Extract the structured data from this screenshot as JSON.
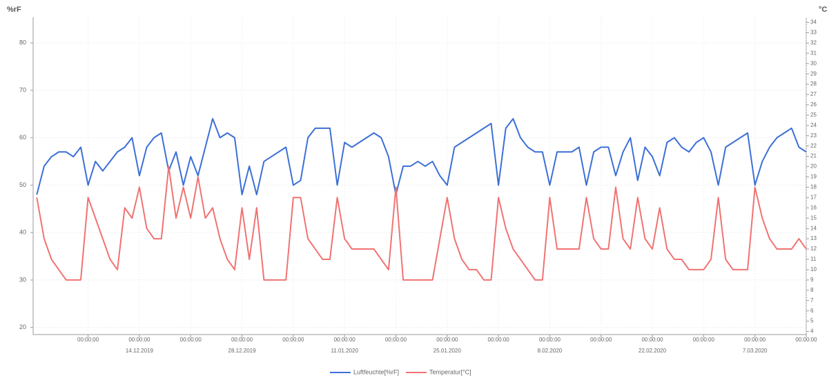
{
  "chart_data": {
    "type": "line",
    "ylabel": "%rF",
    "y2label": "°C",
    "x": [
      -7,
      -6,
      -5,
      -4,
      -3,
      -2,
      -1,
      0,
      1,
      2,
      3,
      4,
      5,
      6,
      7,
      8,
      9,
      10,
      11,
      12,
      13,
      14,
      15,
      16,
      17,
      18,
      19,
      20,
      21,
      22,
      23,
      24,
      25,
      26,
      27,
      28,
      29,
      30,
      31,
      32,
      33,
      34,
      35,
      36,
      37,
      38,
      39,
      40,
      41,
      42,
      43,
      44,
      45,
      46,
      47,
      48,
      49,
      50,
      51,
      52,
      53,
      54,
      55,
      56,
      57,
      58,
      59,
      60,
      61,
      62,
      63,
      64,
      65,
      66,
      67,
      68,
      69,
      70,
      71,
      72,
      73,
      74,
      75,
      76,
      77,
      78,
      79,
      80,
      81,
      82,
      83,
      84,
      85,
      86,
      87,
      88,
      89,
      90,
      91,
      92,
      93,
      94,
      95,
      96,
      97,
      98
    ],
    "series": [
      {
        "name": "Luftfeuchte[%rF]",
        "color": "#3b6fd6",
        "axis": "y",
        "values": [
          48,
          54,
          56,
          57,
          57,
          56,
          58,
          50,
          55,
          53,
          55,
          57,
          58,
          60,
          52,
          58,
          60,
          61,
          53,
          57,
          50,
          56,
          52,
          58,
          64,
          60,
          61,
          60,
          48,
          54,
          48,
          55,
          56,
          57,
          58,
          50,
          51,
          60,
          62,
          62,
          62,
          50,
          59,
          58,
          59,
          60,
          61,
          60,
          56,
          48,
          54,
          54,
          55,
          54,
          55,
          52,
          50,
          58,
          59,
          60,
          61,
          62,
          63,
          50,
          62,
          64,
          60,
          58,
          57,
          57,
          50,
          57,
          57,
          57,
          58,
          50,
          57,
          58,
          58,
          52,
          57,
          60,
          51,
          58,
          56,
          52,
          59,
          60,
          58,
          57,
          59,
          60,
          57,
          50,
          58,
          59,
          60,
          61,
          50,
          55,
          58,
          60,
          61,
          62,
          58,
          57
        ]
      },
      {
        "name": "Temperatur[°C]",
        "color": "#f07272",
        "axis": "y2",
        "values": [
          17,
          13,
          11,
          10,
          9,
          9,
          9,
          17,
          15,
          13,
          11,
          10,
          16,
          15,
          18,
          14,
          13,
          13,
          20,
          15,
          18,
          15,
          19,
          15,
          16,
          13,
          11,
          10,
          16,
          11,
          16,
          9,
          9,
          9,
          9,
          17,
          17,
          13,
          12,
          11,
          11,
          17,
          13,
          12,
          12,
          12,
          12,
          11,
          10,
          18,
          9,
          9,
          9,
          9,
          9,
          13,
          17,
          13,
          11,
          10,
          10,
          9,
          9,
          17,
          14,
          12,
          11,
          10,
          9,
          9,
          17,
          12,
          12,
          12,
          12,
          17,
          13,
          12,
          12,
          18,
          13,
          12,
          17,
          13,
          12,
          16,
          12,
          11,
          11,
          10,
          10,
          10,
          11,
          17,
          11,
          10,
          10,
          10,
          18,
          15,
          13,
          12,
          12,
          12,
          13,
          12
        ]
      }
    ],
    "xlim": [
      -7.5,
      98
    ],
    "xticks": [
      {
        "value": 0,
        "label": "00:00:00"
      },
      {
        "value": 7,
        "label": "00:00:00"
      },
      {
        "value": 14,
        "label": "00:00:00"
      },
      {
        "value": 21,
        "label": "00:00:00"
      },
      {
        "value": 28,
        "label": "00:00:00"
      },
      {
        "value": 35,
        "label": "00:00:00"
      },
      {
        "value": 42,
        "label": "00:00:00"
      },
      {
        "value": 49,
        "label": "00:00:00"
      },
      {
        "value": 56,
        "label": "00:00:00"
      },
      {
        "value": 63,
        "label": "00:00:00"
      },
      {
        "value": 70,
        "label": "00:00:00"
      },
      {
        "value": 77,
        "label": "00:00:00"
      },
      {
        "value": 84,
        "label": "00:00:00"
      },
      {
        "value": 91,
        "label": "00:00:00"
      },
      {
        "value": 98,
        "label": "00:00:00"
      }
    ],
    "date_labels": [
      {
        "value": 7,
        "label": "14.12.2019"
      },
      {
        "value": 21,
        "label": "28.12.2019"
      },
      {
        "value": 35,
        "label": "11.01.2020"
      },
      {
        "value": 49,
        "label": "25.01.2020"
      },
      {
        "value": 63,
        "label": "8.02.2020"
      },
      {
        "value": 77,
        "label": "22.02.2020"
      },
      {
        "value": 91,
        "label": "7.03.2020"
      }
    ],
    "ylim": [
      18.5,
      85.4
    ],
    "yticks": [
      20,
      30,
      40,
      50,
      60,
      70,
      80
    ],
    "y2lim": [
      3.7,
      34.5
    ],
    "y2ticks": [
      4,
      5,
      6,
      7,
      8,
      9,
      10,
      11,
      12,
      13,
      14,
      15,
      16,
      17,
      18,
      19,
      20,
      21,
      22,
      23,
      24,
      25,
      26,
      27,
      28,
      29,
      30,
      31,
      32,
      33,
      34
    ],
    "grid": true,
    "legend": "bottom"
  }
}
